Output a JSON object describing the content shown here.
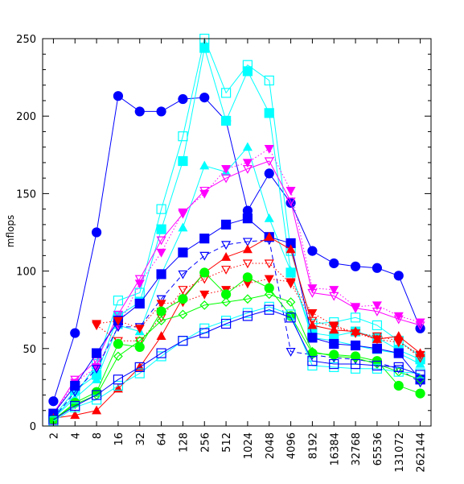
{
  "chart_data": {
    "type": "line",
    "title": "",
    "xlabel": "",
    "ylabel": "mflops",
    "ylim": [
      0,
      250
    ],
    "yticks": [
      0,
      50,
      100,
      150,
      200,
      250
    ],
    "grid": false,
    "legend": "none",
    "categories": [
      "2",
      "4",
      "8",
      "16",
      "32",
      "64",
      "128",
      "256",
      "512",
      "1024",
      "2048",
      "4096",
      "8192",
      "16384",
      "32768",
      "65536",
      "131072",
      "262144"
    ],
    "series": [
      {
        "color": "#0000ff",
        "marker": "circle",
        "filled": true,
        "dash": "solid",
        "values": [
          16,
          60,
          125,
          213,
          203,
          203,
          211,
          212,
          197,
          139,
          163,
          144,
          113,
          105,
          103,
          102,
          97,
          63
        ]
      },
      {
        "color": "#00ffff",
        "marker": "square",
        "filled": false,
        "dash": "solid",
        "values": [
          5,
          20,
          40,
          81,
          86,
          140,
          187,
          250,
          215,
          233,
          223,
          113,
          66,
          67,
          70,
          65,
          55,
          45
        ]
      },
      {
        "color": "#00ffff",
        "marker": "square",
        "filled": true,
        "dash": "solid",
        "values": [
          6,
          23,
          33,
          71,
          80,
          127,
          171,
          244,
          197,
          229,
          202,
          99,
          60,
          58,
          61,
          57,
          49,
          43
        ]
      },
      {
        "color": "#00ffff",
        "marker": "triangle-up",
        "filled": true,
        "dash": "solid",
        "values": [
          5,
          18,
          30,
          65,
          61,
          98,
          128,
          168,
          164,
          180,
          134,
          100,
          57,
          55,
          52,
          49,
          47,
          40
        ]
      },
      {
        "color": "#ff00ff",
        "marker": "triangle-down",
        "filled": true,
        "dash": "dotted",
        "values": [
          8,
          28,
          38,
          64,
          92,
          112,
          138,
          150,
          166,
          170,
          179,
          152,
          89,
          88,
          77,
          78,
          71,
          67
        ]
      },
      {
        "color": "#ff00ff",
        "marker": "triangle-down",
        "filled": false,
        "dash": "solid",
        "values": [
          8,
          30,
          42,
          72,
          95,
          120,
          137,
          152,
          160,
          166,
          171,
          145,
          86,
          84,
          76,
          74,
          69,
          65
        ]
      },
      {
        "color": "#0000ff",
        "marker": "square",
        "filled": true,
        "dash": "solid",
        "values": [
          8,
          26,
          47,
          68,
          79,
          98,
          112,
          121,
          130,
          134,
          122,
          118,
          57,
          53,
          52,
          50,
          47,
          30
        ]
      },
      {
        "color": "#0000ff",
        "marker": "triangle-down",
        "filled": false,
        "dash": "dashed",
        "values": [
          5,
          22,
          37,
          64,
          64,
          82,
          98,
          110,
          117,
          119,
          120,
          48,
          46,
          44,
          43,
          41,
          37,
          28
        ]
      },
      {
        "color": "#ff0000",
        "marker": "triangle-down",
        "filled": true,
        "dash": "dotted",
        "values": [
          null,
          null,
          66,
          68,
          63,
          79,
          80,
          85,
          88,
          92,
          95,
          93,
          73,
          65,
          60,
          56,
          54,
          46
        ]
      },
      {
        "color": "#ff0000",
        "marker": "triangle-down",
        "filled": false,
        "dash": "dotted",
        "values": [
          null,
          null,
          65,
          55,
          55,
          70,
          88,
          95,
          101,
          105,
          105,
          92,
          68,
          64,
          60,
          58,
          55,
          44
        ]
      },
      {
        "color": "#ff0000",
        "marker": "triangle-up",
        "filled": true,
        "dash": "solid",
        "values": [
          5,
          7,
          10,
          24,
          38,
          58,
          83,
          99,
          109,
          114,
          122,
          114,
          65,
          62,
          61,
          56,
          58,
          47
        ]
      },
      {
        "color": "#00ff00",
        "marker": "circle",
        "filled": true,
        "dash": "solid",
        "values": [
          4,
          15,
          22,
          53,
          51,
          74,
          82,
          99,
          85,
          96,
          89,
          71,
          47,
          46,
          45,
          42,
          26,
          21
        ]
      },
      {
        "color": "#00ff00",
        "marker": "diamond",
        "filled": false,
        "dash": "solid",
        "values": [
          4,
          14,
          20,
          45,
          55,
          68,
          72,
          78,
          80,
          82,
          85,
          80,
          48,
          45,
          44,
          40,
          35,
          30
        ]
      },
      {
        "color": "#00ffff",
        "marker": "square",
        "filled": false,
        "dash": "solid",
        "values": [
          3,
          12,
          17,
          26,
          34,
          45,
          55,
          63,
          68,
          73,
          77,
          72,
          39,
          38,
          37,
          37,
          35,
          34
        ]
      },
      {
        "color": "#0000ff",
        "marker": "square",
        "filled": false,
        "dash": "solid",
        "values": [
          4,
          13,
          20,
          30,
          38,
          47,
          55,
          60,
          66,
          71,
          75,
          70,
          42,
          40,
          40,
          39,
          38,
          33
        ]
      }
    ]
  }
}
